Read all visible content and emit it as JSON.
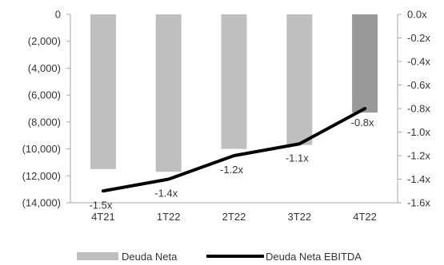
{
  "chart_data": {
    "type": "bar",
    "categories": [
      "4T21",
      "1T22",
      "2T22",
      "3T22",
      "4T22"
    ],
    "series": [
      {
        "name": "Deuda Neta",
        "type": "bar",
        "axis": "left",
        "values": [
          -11500,
          -11700,
          -10000,
          -9700,
          -7300
        ],
        "colors": [
          "#bfbfbf",
          "#bfbfbf",
          "#bfbfbf",
          "#bfbfbf",
          "#999999"
        ]
      },
      {
        "name": "Deuda Neta EBITDA",
        "type": "line",
        "axis": "right",
        "values": [
          -1.5,
          -1.4,
          -1.2,
          -1.1,
          -0.8
        ],
        "labels": [
          "-1.5x",
          "-1.4x",
          "-1.2x",
          "-1.1x",
          "-0.8x"
        ],
        "color": "#000000"
      }
    ],
    "y_left": {
      "lim": [
        -14000,
        0
      ],
      "ticks": [
        0,
        -2000,
        -4000,
        -6000,
        -8000,
        -10000,
        -12000,
        -14000
      ],
      "tick_labels": [
        "0",
        "(2,000)",
        "(4,000)",
        "(6,000)",
        "(8,000)",
        "(10,000)",
        "(12,000)",
        "(14,000)"
      ]
    },
    "y_right": {
      "lim": [
        -1.6,
        0
      ],
      "ticks": [
        0,
        -0.2,
        -0.4,
        -0.6,
        -0.8,
        -1.0,
        -1.2,
        -1.4,
        -1.6
      ],
      "tick_labels": [
        "0.0x",
        "-0.2x",
        "-0.4x",
        "-0.6x",
        "-0.8x",
        "-1.0x",
        "-1.2x",
        "-1.4x",
        "-1.6x"
      ]
    },
    "legend_position": "bottom",
    "grid": false
  }
}
